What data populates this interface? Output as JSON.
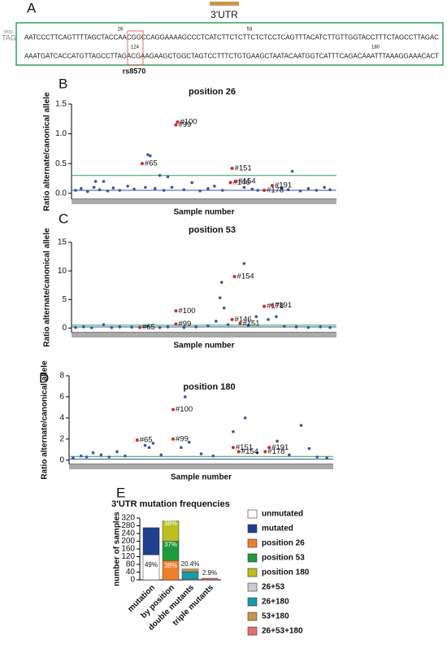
{
  "panel_labels": [
    "A",
    "B",
    "C",
    "D",
    "E"
  ],
  "sequence": {
    "stop": "stop",
    "codon": "TAG",
    "region": "3'UTR",
    "line1": "AATCCCTTCAGTTTTAGCTACCAACGGCCAGGAAAAGCCCTCATCTTCTCTTCTCTCCTCAGTTTACATCTTGTTGGTACCTTTCTAGCCTTAGAC",
    "line2": "AAATGATCACCATGTTAGCCTTAGACGAAGAAGCTGGCTAGTCCTTTCTGTGAAGCTAATACAATGGTCATTTCAGACAAATTTAAAGGAAACACT",
    "positions": [
      "26",
      "53",
      "124",
      "180"
    ],
    "snp": "rs8570"
  },
  "chart_data": [
    {
      "type": "scatter",
      "title": "position 26",
      "ylabel": "Ratio alternate/canonical allele",
      "xlabel": "Sample number",
      "color": "#3a55a4",
      "xlim": [
        0,
        330
      ],
      "ylim": [
        -0.1,
        1.5
      ],
      "yticks": [
        {
          "value": 0,
          "label": "0.0"
        },
        {
          "value": 0.5,
          "label": "0.5"
        },
        {
          "value": 1,
          "label": "1.0"
        },
        {
          "value": 1.5,
          "label": "1.5"
        }
      ],
      "x": [
        5,
        12,
        20,
        28,
        30,
        35,
        40,
        45,
        52,
        60,
        70,
        78,
        92,
        95,
        98,
        104,
        110,
        115,
        120,
        125,
        140,
        150,
        160,
        170,
        178,
        188,
        215,
        225,
        232,
        262,
        270,
        275,
        285,
        295,
        305,
        315,
        322
      ],
      "y": [
        0.05,
        0.08,
        0.03,
        0.1,
        0.2,
        0.06,
        0.2,
        0.04,
        0.09,
        0.05,
        0.12,
        0.07,
        0.1,
        0.65,
        0.63,
        0.08,
        0.3,
        0.05,
        0.28,
        0.1,
        0.06,
        0.18,
        0.04,
        0.08,
        0.12,
        0.05,
        0.1,
        0.07,
        0.05,
        0.09,
        0.06,
        0.37,
        0.04,
        0.08,
        0.05,
        0.1,
        0.06
      ],
      "highlights": {
        "color": "#d62728",
        "labels": [
          "#100",
          "#99",
          "#65",
          "#151",
          "#146",
          "#154",
          "#178",
          "#191"
        ],
        "x": [
          132,
          130,
          88,
          200,
          198,
          205,
          240,
          250
        ],
        "y": [
          1.2,
          1.15,
          0.5,
          0.42,
          0.18,
          0.2,
          0.05,
          0.13
        ]
      },
      "lines": [
        {
          "value": 0.3,
          "color": "#2ca05a"
        },
        {
          "value": 0.05,
          "color": "#3a55a4"
        }
      ]
    },
    {
      "type": "scatter",
      "title": "position 53",
      "ylabel": "Ratio alternate/canonical allele",
      "xlabel": "Sample number",
      "color": "#3a55a4",
      "xlim": [
        0,
        330
      ],
      "ylim": [
        -0.8,
        15
      ],
      "yticks": [
        0,
        5,
        10,
        15
      ],
      "x": [
        5,
        15,
        25,
        40,
        50,
        60,
        75,
        95,
        110,
        120,
        140,
        155,
        170,
        180,
        185,
        187,
        190,
        195,
        215,
        220,
        230,
        245,
        255,
        265,
        280,
        295,
        310,
        322
      ],
      "y": [
        0.1,
        0.2,
        0.05,
        0.6,
        0.1,
        0.2,
        0.15,
        0.3,
        0.1,
        0.2,
        0.1,
        0.2,
        0.4,
        1.2,
        5.3,
        8,
        3.5,
        0.6,
        11.3,
        0.5,
        2,
        1.5,
        2,
        0.3,
        0.2,
        0.1,
        0.2,
        0.1
      ],
      "highlights": {
        "color": "#d62728",
        "labels": [
          "#100",
          "#99",
          "#65",
          "#154",
          "#146",
          "#151",
          "#178",
          "#191"
        ],
        "x": [
          130,
          130,
          85,
          203,
          200,
          210,
          240,
          250
        ],
        "y": [
          3,
          0.7,
          0.1,
          9,
          1.5,
          0.8,
          3.8,
          4
        ]
      },
      "lines": [
        {
          "value": 0.5,
          "color": "#2ca05a"
        },
        {
          "value": 0.2,
          "color": "#3a55a4"
        }
      ]
    },
    {
      "type": "scatter",
      "title": "position 180",
      "ylabel": "Ratio alternate/canonical allele",
      "xlabel": "Sample number",
      "color": "#3a55a4",
      "xlim": [
        0,
        330
      ],
      "ylim": [
        -0.4,
        8
      ],
      "yticks": [
        0,
        2,
        4,
        6,
        8
      ],
      "x": [
        5,
        15,
        22,
        30,
        40,
        50,
        60,
        70,
        95,
        100,
        105,
        115,
        140,
        145,
        150,
        165,
        180,
        205,
        220,
        235,
        260,
        275,
        290,
        300,
        310,
        322
      ],
      "y": [
        0.2,
        0.4,
        0.3,
        0.7,
        0.5,
        0.3,
        0.8,
        0.4,
        1.4,
        1.2,
        1.6,
        0.5,
        1.2,
        6,
        1.7,
        0.6,
        0.4,
        2.7,
        4,
        0.7,
        1.8,
        0.5,
        3.3,
        1.1,
        0.3,
        0.2
      ],
      "highlights": {
        "color": "#d62728",
        "labels": [
          "#100",
          "#99",
          "#65",
          "#151",
          "#154",
          "#178",
          "#191"
        ],
        "x": [
          130,
          130,
          85,
          205,
          212,
          245,
          250
        ],
        "y": [
          4.8,
          2,
          1.9,
          1.2,
          0.8,
          0.8,
          1.2
        ]
      },
      "lines": [
        {
          "value": 0.35,
          "color": "#2ca05a"
        },
        {
          "value": 0.1,
          "color": "#3a55a4"
        }
      ]
    },
    {
      "type": "stacked_bar",
      "title": "3'UTR mutation frequencies",
      "ylabel": "number of samples",
      "categories": [
        "mutation",
        "by position",
        "double mutants",
        "triple mutants"
      ],
      "ylim": [
        0,
        320
      ],
      "yticks": [
        0,
        40,
        80,
        120,
        160,
        200,
        240,
        280,
        320
      ],
      "series": [
        {
          "name": "unmutated",
          "color": "#ffffff",
          "values": [
            130,
            null,
            null,
            null
          ]
        },
        {
          "name": "mutated",
          "color": "#1f3f8f",
          "values": [
            140,
            null,
            null,
            null
          ]
        },
        {
          "name": "position 26",
          "color": "#f07f2a",
          "values": [
            null,
            100,
            null,
            null
          ]
        },
        {
          "name": "position 53",
          "color": "#1e9a3c",
          "values": [
            null,
            100,
            null,
            null
          ]
        },
        {
          "name": "position 180",
          "color": "#bcbf1e",
          "values": [
            null,
            105,
            null,
            null
          ]
        },
        {
          "name": "26+53",
          "color": "#cccccc",
          "values": [
            null,
            null,
            4,
            null
          ]
        },
        {
          "name": "26+180",
          "color": "#1a98b0",
          "values": [
            null,
            null,
            38,
            null
          ]
        },
        {
          "name": "53+180",
          "color": "#c9964a",
          "values": [
            null,
            null,
            14,
            null
          ]
        },
        {
          "name": "26+53+180",
          "color": "#e07070",
          "values": [
            null,
            null,
            null,
            8
          ]
        }
      ],
      "annotations": [
        "49%",
        "38%",
        "37%",
        "38%",
        "20.4%",
        "2.9%"
      ]
    }
  ]
}
